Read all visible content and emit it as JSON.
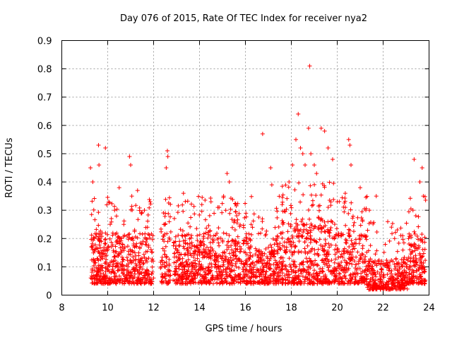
{
  "chart_data": {
    "type": "scatter",
    "title": "Day 076 of 2015, Rate Of TEC Index for receiver nya2",
    "xlabel": "GPS time / hours",
    "ylabel": "ROTI / TECUs",
    "xlim": [
      8,
      24
    ],
    "ylim": [
      0,
      0.9
    ],
    "x_ticks": [
      "8",
      "10",
      "12",
      "14",
      "16",
      "18",
      "20",
      "22",
      "24"
    ],
    "y_ticks": [
      "0",
      "0.1",
      "0.2",
      "0.3",
      "0.4",
      "0.5",
      "0.6",
      "0.7",
      "0.8",
      "0.9"
    ],
    "grid": true,
    "marker": "+",
    "series_color": "#ff0000",
    "data_gaps_hours": [
      [
        12.0,
        12.3
      ],
      [
        12.75,
        12.85
      ]
    ],
    "series": [
      {
        "name": "ROTI",
        "x": [
          9.25,
          9.35,
          9.6,
          9.62,
          9.9,
          10.05,
          10.3,
          10.5,
          10.7,
          10.95,
          11.0,
          11.05,
          11.3,
          11.6,
          11.85,
          12.45,
          12.55,
          12.6,
          12.62,
          13.3,
          14.1,
          14.5,
          14.8,
          15.05,
          15.2,
          15.3,
          16.25,
          16.75,
          17.1,
          17.15,
          17.6,
          17.9,
          18.05,
          18.2,
          18.3,
          18.4,
          18.5,
          18.6,
          18.75,
          18.8,
          18.85,
          19.0,
          19.1,
          19.3,
          19.45,
          19.6,
          19.8,
          20.0,
          20.35,
          20.5,
          20.55,
          20.6,
          21.0,
          21.4,
          21.7,
          22.2,
          22.5,
          22.85,
          23.3,
          23.35,
          23.6,
          23.7,
          23.75
        ],
        "y": [
          0.45,
          0.4,
          0.53,
          0.46,
          0.52,
          0.33,
          0.3,
          0.38,
          0.25,
          0.49,
          0.46,
          0.35,
          0.37,
          0.3,
          0.33,
          0.25,
          0.45,
          0.51,
          0.49,
          0.36,
          0.32,
          0.33,
          0.31,
          0.35,
          0.43,
          0.4,
          0.25,
          0.57,
          0.45,
          0.39,
          0.32,
          0.4,
          0.46,
          0.55,
          0.64,
          0.52,
          0.5,
          0.46,
          0.59,
          0.81,
          0.5,
          0.46,
          0.43,
          0.59,
          0.58,
          0.52,
          0.48,
          0.33,
          0.36,
          0.55,
          0.53,
          0.46,
          0.38,
          0.3,
          0.35,
          0.26,
          0.2,
          0.21,
          0.3,
          0.48,
          0.4,
          0.45,
          0.35
        ]
      }
    ]
  }
}
